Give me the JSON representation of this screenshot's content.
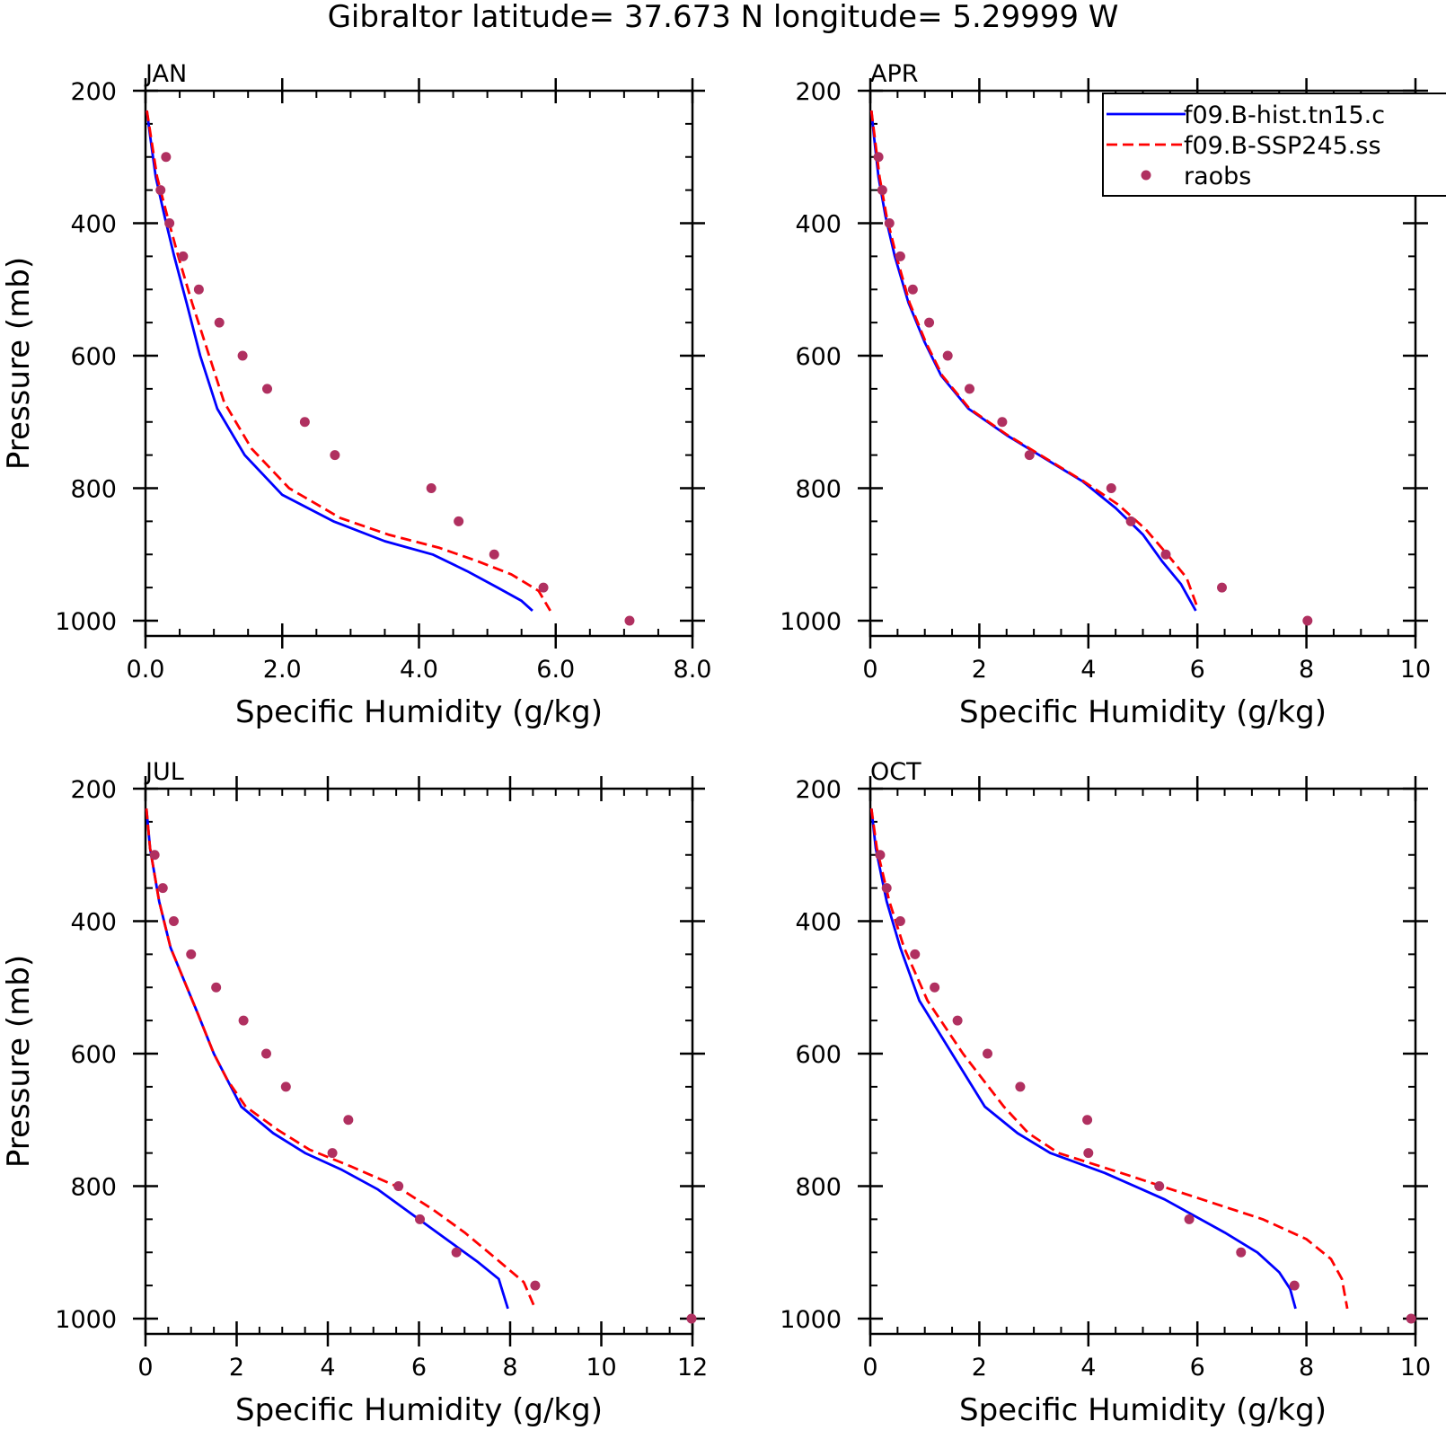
{
  "figure": {
    "title": "Gibraltor  latitude= 37.673 N longitude= 5.29999 W"
  },
  "legend": [
    {
      "label": "f09.B-hist.tn15.c",
      "color": "#0000ff",
      "style": "solid"
    },
    {
      "label": "f09.B-SSP245.ss",
      "color": "#ff0000",
      "style": "dashed"
    },
    {
      "label": "raobs",
      "color": "#b03060",
      "style": "marker"
    }
  ],
  "chart_data": [
    {
      "type": "line",
      "panel": "JAN",
      "title": "JAN",
      "xlabel": "Specific Humidity (g/kg)",
      "ylabel": "Pressure (mb)",
      "xlim": [
        0,
        8
      ],
      "ylim": [
        1000,
        200
      ],
      "y_reversed": true,
      "xticks": [
        "0.0",
        "2.0",
        "4.0",
        "6.0",
        "8.0"
      ],
      "yticks": [
        "200",
        "400",
        "600",
        "800",
        "1000"
      ],
      "legend_position": "none",
      "series": [
        {
          "name": "f09.B-hist.tn15.c",
          "color": "#0000ff",
          "style": "solid",
          "x": [
            0.02,
            0.07,
            0.15,
            0.28,
            0.42,
            0.6,
            0.8,
            1.05,
            1.45,
            2.0,
            2.75,
            3.5,
            4.2,
            4.7,
            5.15,
            5.5,
            5.66
          ],
          "y": [
            230,
            270,
            330,
            390,
            450,
            520,
            600,
            680,
            750,
            810,
            850,
            880,
            900,
            925,
            950,
            970,
            985
          ]
        },
        {
          "name": "f09.B-SSP245.ss",
          "color": "#ff0000",
          "style": "dashed",
          "x": [
            0.02,
            0.08,
            0.17,
            0.32,
            0.48,
            0.68,
            0.9,
            1.15,
            1.55,
            2.1,
            2.85,
            3.55,
            4.3,
            4.85,
            5.35,
            5.75,
            5.92
          ],
          "y": [
            230,
            270,
            330,
            390,
            450,
            520,
            590,
            670,
            740,
            800,
            845,
            870,
            890,
            910,
            930,
            955,
            985
          ]
        },
        {
          "name": "raobs",
          "color": "#b03060",
          "style": "marker",
          "x": [
            0.3,
            0.22,
            0.35,
            0.55,
            0.78,
            1.08,
            1.42,
            1.78,
            2.33,
            2.77,
            4.18,
            4.58,
            5.1,
            5.82,
            7.08
          ],
          "y": [
            300,
            350,
            400,
            450,
            500,
            550,
            600,
            650,
            700,
            750,
            800,
            850,
            900,
            950,
            1000
          ]
        }
      ]
    },
    {
      "type": "line",
      "panel": "APR",
      "title": "APR",
      "xlabel": "Specific Humidity (g/kg)",
      "ylabel": "",
      "xlim": [
        0,
        10
      ],
      "ylim": [
        1000,
        200
      ],
      "y_reversed": true,
      "xticks": [
        "0",
        "2",
        "4",
        "6",
        "8",
        "10"
      ],
      "yticks": [
        "200",
        "400",
        "600",
        "800",
        "1000"
      ],
      "legend_position": "top-right",
      "series": [
        {
          "name": "f09.B-hist.tn15.c",
          "color": "#0000ff",
          "style": "solid",
          "x": [
            0.02,
            0.07,
            0.15,
            0.28,
            0.45,
            0.7,
            1.0,
            1.3,
            1.8,
            2.5,
            3.2,
            3.9,
            4.5,
            5.0,
            5.35,
            5.7,
            5.97
          ],
          "y": [
            230,
            270,
            330,
            390,
            450,
            520,
            580,
            630,
            680,
            720,
            755,
            790,
            830,
            870,
            910,
            945,
            985
          ]
        },
        {
          "name": "f09.B-SSP245.ss",
          "color": "#ff0000",
          "style": "dashed",
          "x": [
            0.02,
            0.08,
            0.17,
            0.3,
            0.48,
            0.72,
            1.02,
            1.32,
            1.82,
            2.52,
            3.22,
            3.92,
            4.55,
            5.05,
            5.45,
            5.8,
            6.0
          ],
          "y": [
            230,
            270,
            330,
            390,
            450,
            520,
            580,
            630,
            680,
            720,
            755,
            790,
            825,
            862,
            900,
            935,
            980
          ]
        },
        {
          "name": "raobs",
          "color": "#b03060",
          "style": "marker",
          "x": [
            0.15,
            0.22,
            0.35,
            0.55,
            0.78,
            1.08,
            1.42,
            1.82,
            2.42,
            2.92,
            4.42,
            4.78,
            5.42,
            6.45,
            8.02
          ],
          "y": [
            300,
            350,
            400,
            450,
            500,
            550,
            600,
            650,
            700,
            750,
            800,
            850,
            900,
            950,
            1000
          ]
        }
      ]
    },
    {
      "type": "line",
      "panel": "JUL",
      "title": "JUL",
      "xlabel": "Specific Humidity (g/kg)",
      "ylabel": "Pressure (mb)",
      "xlim": [
        0,
        12
      ],
      "ylim": [
        1000,
        200
      ],
      "y_reversed": true,
      "xticks": [
        "0",
        "2",
        "4",
        "6",
        "8",
        "10",
        "12"
      ],
      "yticks": [
        "200",
        "400",
        "600",
        "800",
        "1000"
      ],
      "legend_position": "none",
      "series": [
        {
          "name": "f09.B-hist.tn15.c",
          "color": "#0000ff",
          "style": "solid",
          "x": [
            0.02,
            0.1,
            0.3,
            0.55,
            0.85,
            1.15,
            1.5,
            1.8,
            2.1,
            2.8,
            3.5,
            4.3,
            5.1,
            5.9,
            6.6,
            7.3,
            7.75,
            7.95
          ],
          "y": [
            230,
            290,
            370,
            440,
            490,
            540,
            600,
            640,
            680,
            720,
            750,
            775,
            805,
            845,
            880,
            915,
            940,
            985
          ]
        },
        {
          "name": "f09.B-SSP245.ss",
          "color": "#ff0000",
          "style": "dashed",
          "x": [
            0.02,
            0.1,
            0.3,
            0.55,
            0.85,
            1.15,
            1.5,
            1.8,
            2.2,
            2.9,
            3.6,
            4.5,
            5.5,
            6.3,
            7.0,
            7.7,
            8.3,
            8.55
          ],
          "y": [
            230,
            290,
            370,
            440,
            490,
            540,
            600,
            640,
            680,
            715,
            745,
            770,
            800,
            835,
            870,
            910,
            945,
            985
          ]
        },
        {
          "name": "raobs",
          "color": "#b03060",
          "style": "marker",
          "x": [
            0.2,
            0.38,
            0.62,
            1.0,
            1.55,
            2.15,
            2.65,
            3.08,
            4.45,
            4.1,
            5.55,
            6.02,
            6.82,
            8.55,
            11.98
          ],
          "y": [
            300,
            350,
            400,
            450,
            500,
            550,
            600,
            650,
            700,
            750,
            800,
            850,
            900,
            950,
            1000
          ]
        }
      ]
    },
    {
      "type": "line",
      "panel": "OCT",
      "title": "OCT",
      "xlabel": "Specific Humidity (g/kg)",
      "ylabel": "",
      "xlim": [
        0,
        10
      ],
      "ylim": [
        1000,
        200
      ],
      "y_reversed": true,
      "xticks": [
        "0",
        "2",
        "4",
        "6",
        "8",
        "10"
      ],
      "yticks": [
        "200",
        "400",
        "600",
        "800",
        "1000"
      ],
      "legend_position": "none",
      "series": [
        {
          "name": "f09.B-hist.tn15.c",
          "color": "#0000ff",
          "style": "solid",
          "x": [
            0.02,
            0.1,
            0.3,
            0.55,
            0.9,
            1.5,
            2.1,
            2.7,
            3.3,
            4.3,
            5.4,
            6.5,
            7.1,
            7.5,
            7.7,
            7.8
          ],
          "y": [
            230,
            290,
            370,
            440,
            520,
            600,
            680,
            720,
            750,
            780,
            820,
            870,
            900,
            930,
            955,
            985
          ]
        },
        {
          "name": "f09.B-SSP245.ss",
          "color": "#ff0000",
          "style": "dashed",
          "x": [
            0.02,
            0.12,
            0.35,
            0.62,
            1.05,
            1.7,
            2.45,
            2.9,
            3.45,
            4.6,
            5.9,
            7.2,
            8.0,
            8.45,
            8.65,
            8.75
          ],
          "y": [
            230,
            290,
            370,
            440,
            520,
            600,
            680,
            720,
            750,
            780,
            815,
            850,
            880,
            910,
            940,
            985
          ]
        },
        {
          "name": "raobs",
          "color": "#b03060",
          "style": "marker",
          "x": [
            0.18,
            0.3,
            0.55,
            0.82,
            1.18,
            1.6,
            2.15,
            2.75,
            3.98,
            4.0,
            5.3,
            5.85,
            6.8,
            7.78,
            9.92
          ],
          "y": [
            300,
            350,
            400,
            450,
            500,
            550,
            600,
            650,
            700,
            750,
            800,
            850,
            900,
            950,
            1000
          ]
        }
      ]
    }
  ]
}
